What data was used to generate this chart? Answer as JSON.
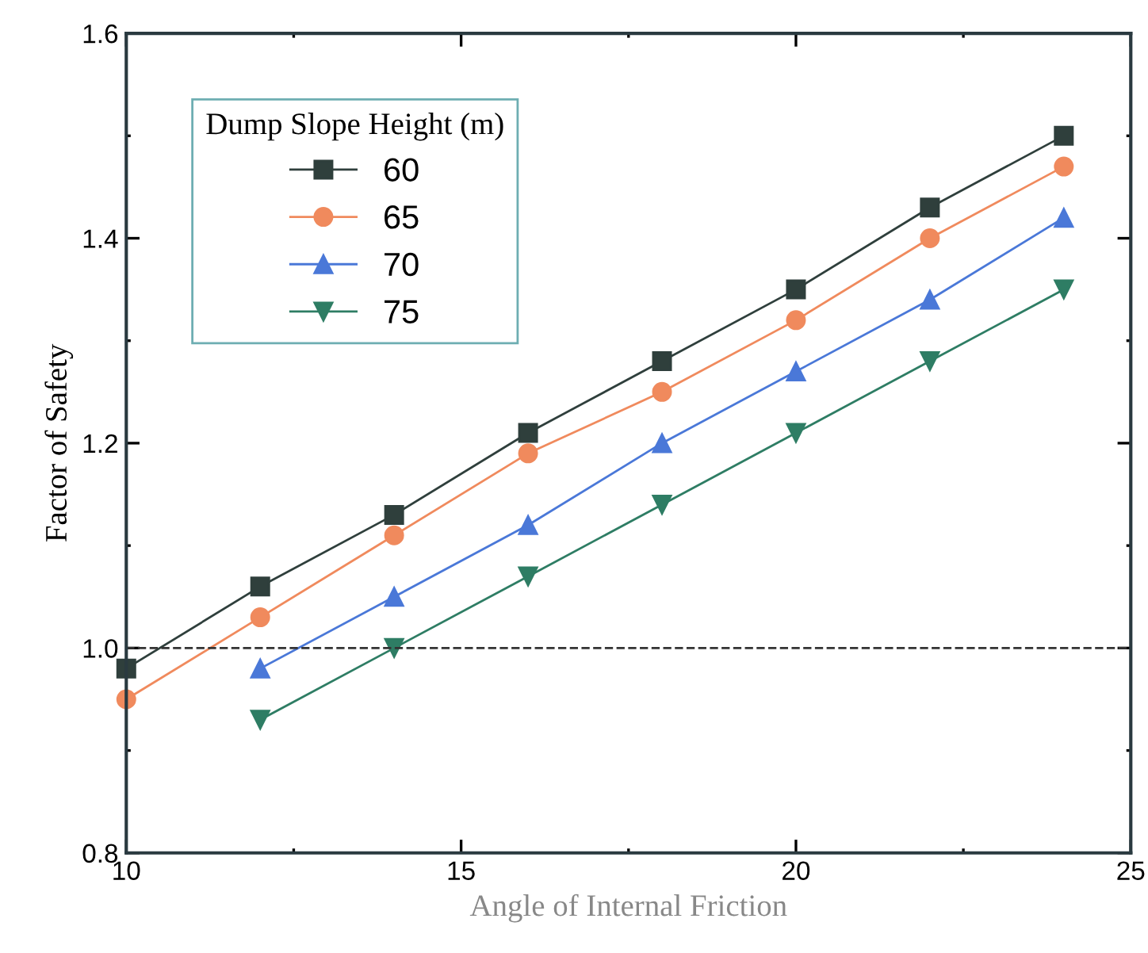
{
  "chart_data": {
    "type": "line",
    "xlabel": "Angle of Internal Friction",
    "ylabel": "Factor of Safety",
    "legend_title": "Dump Slope Height (m)",
    "xlim": [
      10,
      25
    ],
    "xticks": [
      10,
      15,
      20,
      25
    ],
    "ylim": [
      0.8,
      1.6
    ],
    "yticks": [
      {
        "value": 0.8,
        "label": "0.8"
      },
      {
        "value": 1.0,
        "label": "1.0"
      },
      {
        "value": 1.2,
        "label": "1.2"
      },
      {
        "value": 1.4,
        "label": "1.4"
      },
      {
        "value": 1.6,
        "label": "1.6"
      }
    ],
    "grid": false,
    "legend": "top left",
    "ref_lines": [
      {
        "axis": "y",
        "value": 1.0,
        "color": "#333333",
        "line_style": "dashed"
      }
    ],
    "series": [
      {
        "name": "60",
        "color": "#2f3f3c",
        "marker": "square",
        "x": [
          10,
          12,
          14,
          16,
          18,
          20,
          22,
          24
        ],
        "values": [
          0.98,
          1.06,
          1.13,
          1.21,
          1.28,
          1.35,
          1.43,
          1.5
        ]
      },
      {
        "name": "65",
        "color": "#f08a5d",
        "marker": "circle",
        "x": [
          10,
          12,
          14,
          16,
          18,
          20,
          22,
          24
        ],
        "values": [
          0.95,
          1.03,
          1.11,
          1.19,
          1.25,
          1.32,
          1.4,
          1.47
        ]
      },
      {
        "name": "70",
        "color": "#4a78d8",
        "marker": "triangle",
        "x": [
          12,
          14,
          16,
          18,
          20,
          22,
          24
        ],
        "values": [
          0.98,
          1.05,
          1.12,
          1.2,
          1.27,
          1.34,
          1.42
        ]
      },
      {
        "name": "75",
        "color": "#2e7d64",
        "marker": "triangle_down",
        "x": [
          12,
          14,
          16,
          18,
          20,
          22,
          24
        ],
        "values": [
          0.93,
          1.0,
          1.07,
          1.14,
          1.21,
          1.28,
          1.35
        ]
      }
    ]
  }
}
